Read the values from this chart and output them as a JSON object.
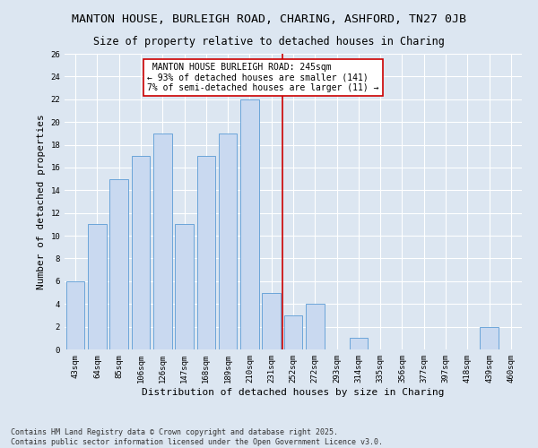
{
  "title1": "MANTON HOUSE, BURLEIGH ROAD, CHARING, ASHFORD, TN27 0JB",
  "title2": "Size of property relative to detached houses in Charing",
  "xlabel": "Distribution of detached houses by size in Charing",
  "ylabel": "Number of detached properties",
  "categories": [
    "43sqm",
    "64sqm",
    "85sqm",
    "106sqm",
    "126sqm",
    "147sqm",
    "168sqm",
    "189sqm",
    "210sqm",
    "231sqm",
    "252sqm",
    "272sqm",
    "293sqm",
    "314sqm",
    "335sqm",
    "356sqm",
    "377sqm",
    "397sqm",
    "418sqm",
    "439sqm",
    "460sqm"
  ],
  "values": [
    6,
    11,
    15,
    17,
    19,
    11,
    17,
    19,
    22,
    5,
    3,
    4,
    0,
    1,
    0,
    0,
    0,
    0,
    0,
    2,
    0
  ],
  "bar_color": "#c9d9f0",
  "bar_edge_color": "#5b9bd5",
  "vline_x": 9.5,
  "vline_color": "#cc0000",
  "annotation_text": " MANTON HOUSE BURLEIGH ROAD: 245sqm\n← 93% of detached houses are smaller (141)\n7% of semi-detached houses are larger (11) →",
  "annotation_box_color": "#cc0000",
  "ylim": [
    0,
    26
  ],
  "yticks": [
    0,
    2,
    4,
    6,
    8,
    10,
    12,
    14,
    16,
    18,
    20,
    22,
    24,
    26
  ],
  "background_color": "#dce6f1",
  "footer_text": "Contains HM Land Registry data © Crown copyright and database right 2025.\nContains public sector information licensed under the Open Government Licence v3.0.",
  "title1_fontsize": 9.5,
  "title2_fontsize": 8.5,
  "annotation_fontsize": 7,
  "axis_label_fontsize": 8,
  "tick_fontsize": 6.5,
  "footer_fontsize": 6
}
